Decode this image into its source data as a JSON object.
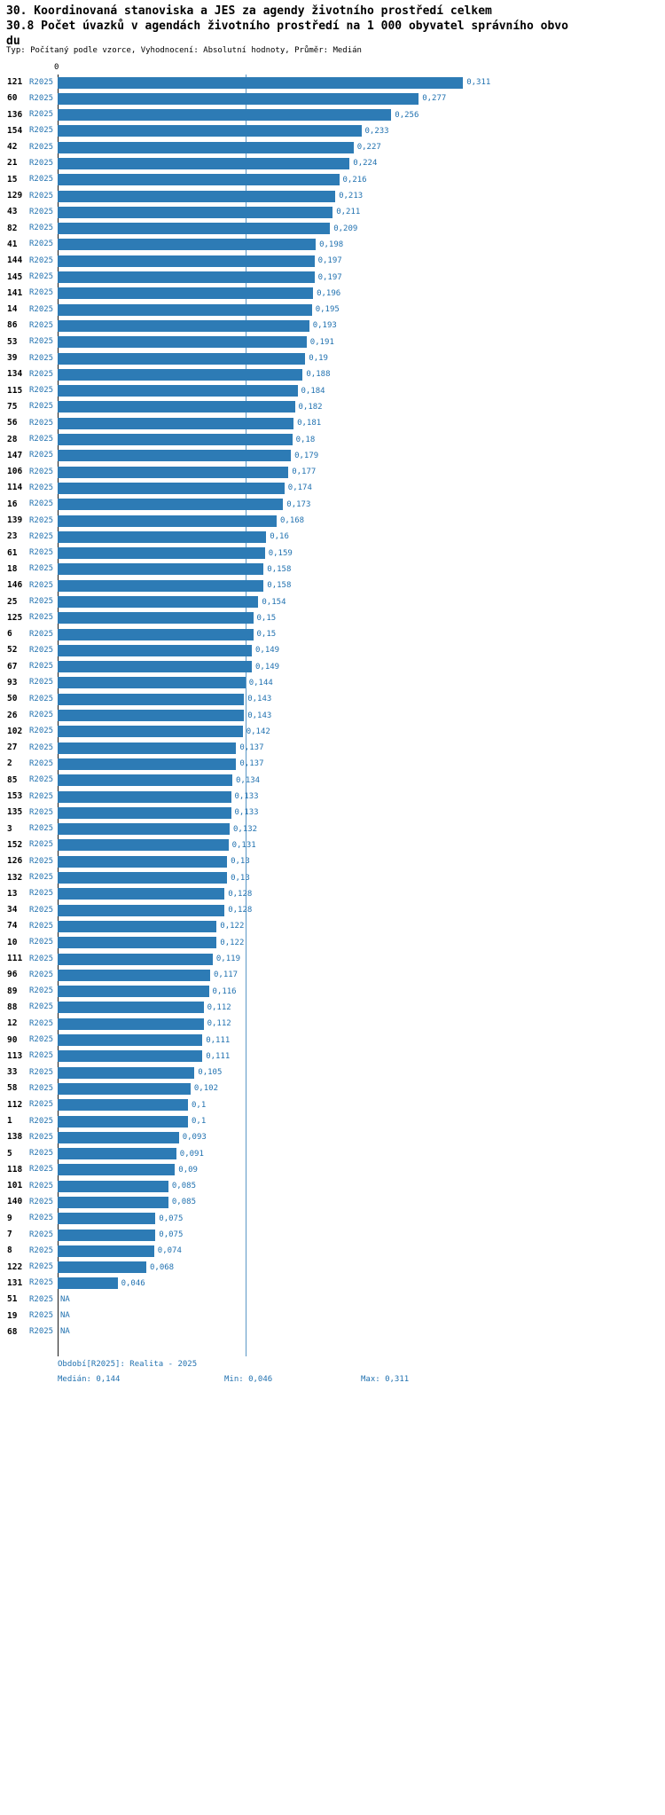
{
  "title": {
    "line1": "30. Koordinovaná stanoviska a JES za agendy životního prostředí celkem",
    "line2": "30.8 Počet úvazků v agendách životního prostředí na 1 000 obyvatel správního obvodu",
    "meta": "Typ: Počítaný podle vzorce, Vyhodnocení: Absolutní hodnoty, Průměr: Medián"
  },
  "axis": {
    "zero_label": "0"
  },
  "chart_data": {
    "type": "bar",
    "orientation": "horizontal",
    "series_name": "R2025",
    "na_label": "NA",
    "xlim": [
      0,
      0.32
    ],
    "median_line": 0.144,
    "legend": "none",
    "grid": "median-line-only",
    "categories": [
      "121",
      "60",
      "136",
      "154",
      "42",
      "21",
      "15",
      "129",
      "43",
      "82",
      "41",
      "144",
      "145",
      "141",
      "14",
      "86",
      "53",
      "39",
      "134",
      "115",
      "75",
      "56",
      "28",
      "147",
      "106",
      "114",
      "16",
      "139",
      "23",
      "61",
      "18",
      "146",
      "25",
      "125",
      "6",
      "52",
      "67",
      "93",
      "50",
      "26",
      "102",
      "27",
      "2",
      "85",
      "153",
      "135",
      "3",
      "152",
      "126",
      "132",
      "13",
      "34",
      "74",
      "10",
      "111",
      "96",
      "89",
      "88",
      "12",
      "90",
      "113",
      "33",
      "58",
      "112",
      "1",
      "138",
      "5",
      "118",
      "101",
      "140",
      "9",
      "7",
      "8",
      "122",
      "131",
      "51",
      "19",
      "68"
    ],
    "values": [
      0.311,
      0.277,
      0.256,
      0.233,
      0.227,
      0.224,
      0.216,
      0.213,
      0.211,
      0.209,
      0.198,
      0.197,
      0.197,
      0.196,
      0.195,
      0.193,
      0.191,
      0.19,
      0.188,
      0.184,
      0.182,
      0.181,
      0.18,
      0.179,
      0.177,
      0.174,
      0.173,
      0.168,
      0.16,
      0.159,
      0.158,
      0.158,
      0.154,
      0.15,
      0.15,
      0.149,
      0.149,
      0.144,
      0.143,
      0.143,
      0.142,
      0.137,
      0.137,
      0.134,
      0.133,
      0.133,
      0.132,
      0.131,
      0.13,
      0.13,
      0.128,
      0.128,
      0.122,
      0.122,
      0.119,
      0.117,
      0.116,
      0.112,
      0.112,
      0.111,
      0.111,
      0.105,
      0.102,
      0.1,
      0.1,
      0.093,
      0.091,
      0.09,
      0.085,
      0.085,
      0.075,
      0.075,
      0.074,
      0.068,
      0.046,
      null,
      null,
      null
    ],
    "value_labels": [
      "0,311",
      "0,277",
      "0,256",
      "0,233",
      "0,227",
      "0,224",
      "0,216",
      "0,213",
      "0,211",
      "0,209",
      "0,198",
      "0,197",
      "0,197",
      "0,196",
      "0,195",
      "0,193",
      "0,191",
      "0,19",
      "0,188",
      "0,184",
      "0,182",
      "0,181",
      "0,18",
      "0,179",
      "0,177",
      "0,174",
      "0,173",
      "0,168",
      "0,16",
      "0,159",
      "0,158",
      "0,158",
      "0,154",
      "0,15",
      "0,15",
      "0,149",
      "0,149",
      "0,144",
      "0,143",
      "0,143",
      "0,142",
      "0,137",
      "0,137",
      "0,134",
      "0,133",
      "0,133",
      "0,132",
      "0,131",
      "0,13",
      "0,13",
      "0,128",
      "0,128",
      "0,122",
      "0,122",
      "0,119",
      "0,117",
      "0,116",
      "0,112",
      "0,112",
      "0,111",
      "0,111",
      "0,105",
      "0,102",
      "0,1",
      "0,1",
      "0,093",
      "0,091",
      "0,09",
      "0,085",
      "0,085",
      "0,075",
      "0,075",
      "0,074",
      "0,068",
      "0,046",
      "NA",
      "NA",
      "NA"
    ]
  },
  "footer": {
    "period": "Období[R2025]: Realita - 2025",
    "median": "Medián: 0,144",
    "min": "Min: 0,046",
    "max": "Max: 0,311"
  },
  "colors": {
    "bar": "#2d7bb5",
    "accent_text": "#2272b0",
    "median_line": "#5b97c6",
    "axis": "#1a1a1a"
  }
}
